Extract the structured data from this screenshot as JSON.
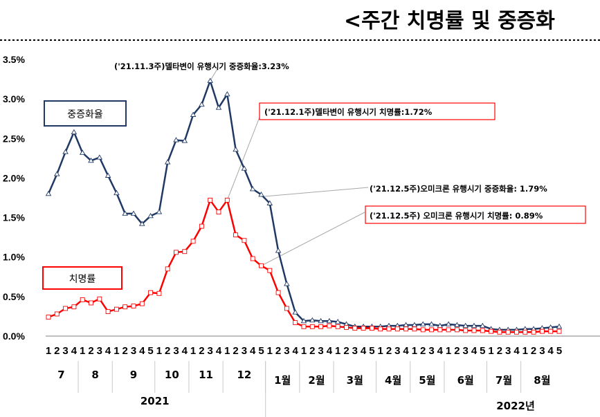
{
  "title": "<주간 치명률 및 중증화",
  "chart_data": {
    "type": "line",
    "ylim": [
      0,
      3.5
    ],
    "yticks": [
      "0.0%",
      "0.5%",
      "1.0%",
      "1.5%",
      "2.0%",
      "2.5%",
      "3.0%",
      "3.5%"
    ],
    "week_labels": [
      "1",
      "2",
      "3",
      "4",
      "1",
      "2",
      "3",
      "4",
      "1",
      "2",
      "3",
      "4",
      "5",
      "1",
      "2",
      "3",
      "4",
      "1",
      "2",
      "3",
      "4",
      "1",
      "2",
      "3",
      "4",
      "5",
      "1",
      "2",
      "3",
      "4",
      "1",
      "2",
      "3",
      "4",
      "1",
      "2",
      "3",
      "4",
      "5",
      "1",
      "2",
      "3",
      "4",
      "1",
      "2",
      "3",
      "4",
      "1",
      "2",
      "3",
      "4",
      "5",
      "1",
      "2",
      "3",
      "4",
      "1",
      "2",
      "3",
      "4",
      "5"
    ],
    "month_groups": [
      {
        "label": "7",
        "count": 4
      },
      {
        "label": "8",
        "count": 4
      },
      {
        "label": "9",
        "count": 5
      },
      {
        "label": "10",
        "count": 4
      },
      {
        "label": "11",
        "count": 4
      },
      {
        "label": "12",
        "count": 5
      },
      {
        "label": "1월",
        "count": 4
      },
      {
        "label": "2월",
        "count": 4
      },
      {
        "label": "3월",
        "count": 5
      },
      {
        "label": "4월",
        "count": 4
      },
      {
        "label": "5월",
        "count": 4
      },
      {
        "label": "6월",
        "count": 5
      },
      {
        "label": "7월",
        "count": 4
      },
      {
        "label": "8월",
        "count": 5
      }
    ],
    "year_labels": [
      {
        "label": "2021",
        "count": 26
      },
      {
        "label": "2022년",
        "count": 35
      }
    ],
    "series": [
      {
        "name": "중증화율",
        "color": "#1f3864",
        "values": [
          1.8,
          2.05,
          2.33,
          2.58,
          2.32,
          2.22,
          2.26,
          2.03,
          1.81,
          1.55,
          1.55,
          1.42,
          1.52,
          1.57,
          2.2,
          2.48,
          2.47,
          2.8,
          2.93,
          3.23,
          2.89,
          3.06,
          2.36,
          2.12,
          1.86,
          1.79,
          1.68,
          1.08,
          0.66,
          0.3,
          0.19,
          0.2,
          0.19,
          0.19,
          0.18,
          0.15,
          0.12,
          0.12,
          0.12,
          0.12,
          0.13,
          0.13,
          0.14,
          0.14,
          0.15,
          0.15,
          0.13,
          0.15,
          0.14,
          0.13,
          0.13,
          0.13,
          0.09,
          0.08,
          0.08,
          0.08,
          0.09,
          0.09,
          0.1,
          0.11,
          0.12
        ]
      },
      {
        "name": "치명률",
        "color": "#ff0000",
        "values": [
          0.24,
          0.28,
          0.35,
          0.37,
          0.46,
          0.42,
          0.47,
          0.31,
          0.34,
          0.37,
          0.38,
          0.41,
          0.55,
          0.54,
          0.85,
          1.06,
          1.07,
          1.2,
          1.39,
          1.72,
          1.57,
          1.72,
          1.28,
          1.21,
          0.98,
          0.89,
          0.83,
          0.55,
          0.35,
          0.17,
          0.12,
          0.12,
          0.12,
          0.13,
          0.12,
          0.11,
          0.1,
          0.1,
          0.1,
          0.09,
          0.09,
          0.09,
          0.09,
          0.09,
          0.08,
          0.08,
          0.08,
          0.08,
          0.08,
          0.07,
          0.07,
          0.07,
          0.06,
          0.05,
          0.05,
          0.05,
          0.05,
          0.05,
          0.06,
          0.06,
          0.06
        ]
      }
    ],
    "legend": [
      "중증화율",
      "치명률"
    ],
    "annotations": [
      "('21.11.3주)델타변이 유행시기 중증화율:3.23%",
      "('21.12.1주)델타변이 유행시기 치명률:1.72%",
      "('21.12.5주)오미크론 유행시기 중증화율: 1.79%",
      "('21.12.5주) 오미크론 유행시기 치명률: 0.89%"
    ]
  }
}
